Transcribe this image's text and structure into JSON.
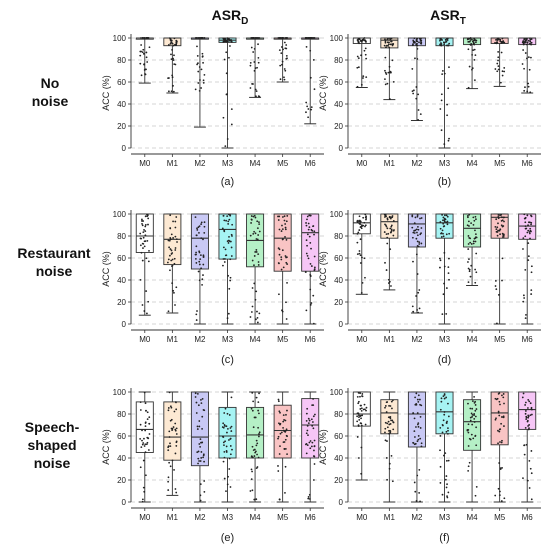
{
  "column_titles": [
    {
      "main": "ASR",
      "sub": "D"
    },
    {
      "main": "ASR",
      "sub": "T"
    }
  ],
  "row_titles": [
    [
      "No",
      "noise"
    ],
    [
      "Restaurant",
      "noise"
    ],
    [
      "Speech-",
      "shaped",
      "noise"
    ]
  ],
  "model_colors": [
    "#ffffff",
    "#fde9d3",
    "#c9c9f5",
    "#a6f3f3",
    "#b5f0c6",
    "#f9c4c4",
    "#f6c6f6"
  ],
  "chart_data": [
    {
      "type": "box",
      "panel_label": "(a)",
      "ylabel": "ACC (%)",
      "ylim": [
        0,
        100
      ],
      "yticks": [
        0,
        20,
        40,
        60,
        80,
        100
      ],
      "categories": [
        "M0",
        "M1",
        "M2",
        "M3",
        "M4",
        "M5",
        "M6"
      ],
      "boxes": [
        {
          "min": 59,
          "q1": 100,
          "median": 100,
          "q3": 100,
          "max": 100
        },
        {
          "min": 50,
          "q1": 93,
          "median": 100,
          "q3": 100,
          "max": 100
        },
        {
          "min": 19,
          "q1": 100,
          "median": 100,
          "q3": 100,
          "max": 100
        },
        {
          "min": 0,
          "q1": 96,
          "median": 98,
          "q3": 100,
          "max": 100
        },
        {
          "min": 46,
          "q1": 100,
          "median": 100,
          "q3": 100,
          "max": 100
        },
        {
          "min": 60,
          "q1": 100,
          "median": 100,
          "q3": 100,
          "max": 100
        },
        {
          "min": 22,
          "q1": 100,
          "median": 100,
          "q3": 100,
          "max": 100
        }
      ]
    },
    {
      "type": "box",
      "panel_label": "(b)",
      "ylabel": "ACC (%)",
      "ylim": [
        0,
        100
      ],
      "yticks": [
        0,
        20,
        40,
        60,
        80,
        100
      ],
      "categories": [
        "M0",
        "M1",
        "M2",
        "M3",
        "M4",
        "M5",
        "M6"
      ],
      "boxes": [
        {
          "min": 55,
          "q1": 95,
          "median": 100,
          "q3": 100,
          "max": 100
        },
        {
          "min": 44,
          "q1": 91,
          "median": 98,
          "q3": 100,
          "max": 100
        },
        {
          "min": 25,
          "q1": 93,
          "median": 100,
          "q3": 100,
          "max": 100
        },
        {
          "min": 0,
          "q1": 93,
          "median": 100,
          "q3": 100,
          "max": 100
        },
        {
          "min": 54,
          "q1": 94,
          "median": 100,
          "q3": 100,
          "max": 100
        },
        {
          "min": 56,
          "q1": 95,
          "median": 100,
          "q3": 100,
          "max": 100
        },
        {
          "min": 50,
          "q1": 94,
          "median": 100,
          "q3": 100,
          "max": 100
        }
      ]
    },
    {
      "type": "box",
      "panel_label": "(c)",
      "ylabel": "ACC (%)",
      "ylim": [
        0,
        100
      ],
      "yticks": [
        0,
        20,
        40,
        60,
        80,
        100
      ],
      "categories": [
        "M0",
        "M1",
        "M2",
        "M3",
        "M4",
        "M5",
        "M6"
      ],
      "boxes": [
        {
          "min": 8,
          "q1": 65,
          "median": 80,
          "q3": 100,
          "max": 100
        },
        {
          "min": 10,
          "q1": 54,
          "median": 77,
          "q3": 100,
          "max": 100
        },
        {
          "min": 0,
          "q1": 50,
          "median": 78,
          "q3": 100,
          "max": 100
        },
        {
          "min": 0,
          "q1": 59,
          "median": 86,
          "q3": 100,
          "max": 100
        },
        {
          "min": 0,
          "q1": 52,
          "median": 76,
          "q3": 100,
          "max": 100
        },
        {
          "min": 0,
          "q1": 48,
          "median": 78,
          "q3": 100,
          "max": 100
        },
        {
          "min": 0,
          "q1": 48,
          "median": 83,
          "q3": 100,
          "max": 100
        }
      ]
    },
    {
      "type": "box",
      "panel_label": "(d)",
      "ylabel": "ACC (%)",
      "ylim": [
        0,
        100
      ],
      "yticks": [
        0,
        20,
        40,
        60,
        80,
        100
      ],
      "categories": [
        "M0",
        "M1",
        "M2",
        "M3",
        "M4",
        "M5",
        "M6"
      ],
      "boxes": [
        {
          "min": 27,
          "q1": 82,
          "median": 92,
          "q3": 100,
          "max": 100
        },
        {
          "min": 31,
          "q1": 78,
          "median": 93,
          "q3": 100,
          "max": 100
        },
        {
          "min": 10,
          "q1": 70,
          "median": 91,
          "q3": 100,
          "max": 100
        },
        {
          "min": 0,
          "q1": 78,
          "median": 92,
          "q3": 100,
          "max": 100
        },
        {
          "min": 35,
          "q1": 70,
          "median": 87,
          "q3": 100,
          "max": 100
        },
        {
          "min": 0,
          "q1": 78,
          "median": 97,
          "q3": 100,
          "max": 100
        },
        {
          "min": 0,
          "q1": 77,
          "median": 89,
          "q3": 100,
          "max": 100
        }
      ]
    },
    {
      "type": "box",
      "panel_label": "(e)",
      "ylabel": "ACC (%)",
      "ylim": [
        0,
        100
      ],
      "yticks": [
        0,
        20,
        40,
        60,
        80,
        100
      ],
      "categories": [
        "M0",
        "M1",
        "M2",
        "M3",
        "M4",
        "M5",
        "M6"
      ],
      "boxes": [
        {
          "min": 0,
          "q1": 45,
          "median": 66,
          "q3": 91,
          "max": 100
        },
        {
          "min": 6,
          "q1": 38,
          "median": 59,
          "q3": 91,
          "max": 100
        },
        {
          "min": 0,
          "q1": 33,
          "median": 59,
          "q3": 100,
          "max": 100
        },
        {
          "min": 0,
          "q1": 40,
          "median": 60,
          "q3": 86,
          "max": 100
        },
        {
          "min": 0,
          "q1": 40,
          "median": 61,
          "q3": 86,
          "max": 100
        },
        {
          "min": 0,
          "q1": 40,
          "median": 65,
          "q3": 88,
          "max": 100
        },
        {
          "min": 0,
          "q1": 40,
          "median": 70,
          "q3": 94,
          "max": 100
        }
      ]
    },
    {
      "type": "box",
      "panel_label": "(f)",
      "ylabel": "ACC (%)",
      "ylim": [
        0,
        100
      ],
      "yticks": [
        0,
        20,
        40,
        60,
        80,
        100
      ],
      "categories": [
        "M0",
        "M1",
        "M2",
        "M3",
        "M4",
        "M5",
        "M6"
      ],
      "boxes": [
        {
          "min": 20,
          "q1": 69,
          "median": 80,
          "q3": 100,
          "max": 100
        },
        {
          "min": 0,
          "q1": 62,
          "median": 81,
          "q3": 93,
          "max": 100
        },
        {
          "min": 0,
          "q1": 50,
          "median": 80,
          "q3": 100,
          "max": 100
        },
        {
          "min": 0,
          "q1": 62,
          "median": 82,
          "q3": 100,
          "max": 100
        },
        {
          "min": 0,
          "q1": 47,
          "median": 73,
          "q3": 93,
          "max": 100
        },
        {
          "min": 0,
          "q1": 52,
          "median": 81,
          "q3": 100,
          "max": 100
        },
        {
          "min": 0,
          "q1": 66,
          "median": 84,
          "q3": 100,
          "max": 100
        }
      ]
    }
  ]
}
